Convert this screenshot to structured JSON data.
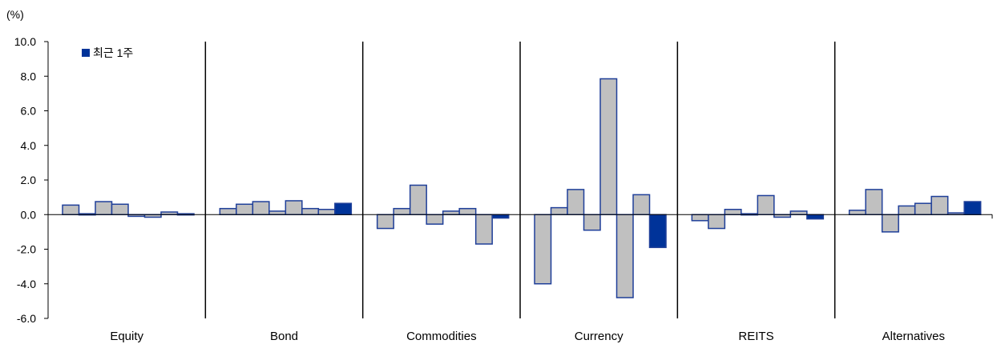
{
  "chart_data": {
    "type": "bar",
    "unit_label": "(%)",
    "legend": {
      "label": "최근 1주",
      "color": "#003399",
      "position": "top-left"
    },
    "colors": {
      "bar_fill": "#c0c0c0",
      "bar_stroke": "#1f3f99",
      "highlight": "#003399"
    },
    "ylim": [
      -6.0,
      10.0
    ],
    "y_ticks": [
      "10.0",
      "8.0",
      "6.0",
      "4.0",
      "2.0",
      "0.0",
      "-2.0",
      "-4.0",
      "-6.0"
    ],
    "grid": false,
    "groups": [
      {
        "name": "Equity",
        "values": [
          0.55,
          0.05,
          0.75,
          0.6,
          -0.1,
          -0.15,
          0.15,
          0.05
        ]
      },
      {
        "name": "Bond",
        "values": [
          0.35,
          0.6,
          0.75,
          0.2,
          0.8,
          0.35,
          0.3,
          0.65
        ]
      },
      {
        "name": "Commodities",
        "values": [
          -0.8,
          0.35,
          1.7,
          -0.55,
          0.2,
          0.35,
          -1.7,
          -0.2
        ]
      },
      {
        "name": "Currency",
        "values": [
          -4.0,
          0.4,
          1.45,
          -0.9,
          7.85,
          -4.8,
          1.15,
          -1.9
        ]
      },
      {
        "name": "REITS",
        "values": [
          -0.35,
          -0.8,
          0.3,
          0.05,
          1.1,
          -0.15,
          0.2,
          -0.25
        ]
      },
      {
        "name": "Alternatives",
        "values": [
          0.25,
          1.45,
          -1.0,
          0.5,
          0.65,
          1.05,
          0.1,
          0.75
        ]
      }
    ],
    "highlight_index": 7
  }
}
